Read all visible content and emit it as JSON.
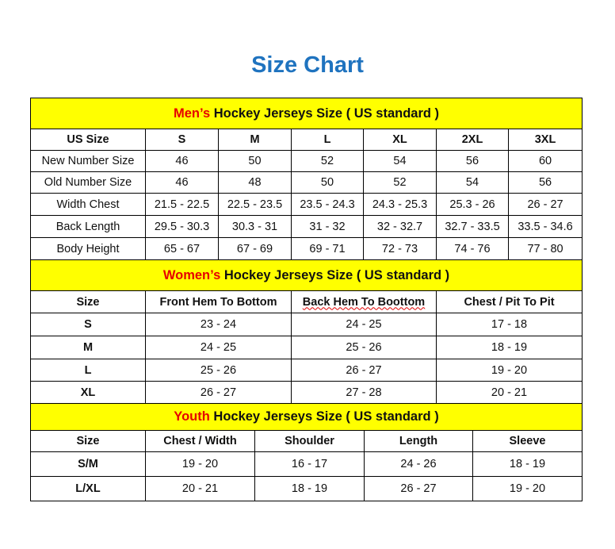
{
  "title": "Size Chart",
  "colors": {
    "title": "#1f73bf",
    "header_bg": "#ffff00",
    "accent_text": "#e60000"
  },
  "men": {
    "accent": "Men’s",
    "heading": " Hockey Jerseys Size ( US standard )",
    "columns": [
      "US Size",
      "S",
      "M",
      "L",
      "XL",
      "2XL",
      "3XL"
    ],
    "rows": [
      [
        "New Number Size",
        "46",
        "50",
        "52",
        "54",
        "56",
        "60"
      ],
      [
        "Old Number Size",
        "46",
        "48",
        "50",
        "52",
        "54",
        "56"
      ],
      [
        "Width Chest",
        "21.5 - 22.5",
        "22.5 - 23.5",
        "23.5 - 24.3",
        "24.3 - 25.3",
        "25.3 - 26",
        "26 - 27"
      ],
      [
        "Back Length",
        "29.5 - 30.3",
        "30.3 - 31",
        "31 - 32",
        "32 - 32.7",
        "32.7 - 33.5",
        "33.5 - 34.6"
      ],
      [
        "Body Height",
        "65 - 67",
        "67 - 69",
        "69 - 71",
        "72 - 73",
        "74 - 76",
        "77 - 80"
      ]
    ]
  },
  "women": {
    "accent": "Women’s",
    "heading": " Hockey Jerseys Size ( US standard )",
    "columns": [
      "Size",
      "Front Hem To Bottom",
      "Back Hem To Boottom",
      "Chest / Pit To Pit"
    ],
    "rows": [
      [
        "S",
        "23 - 24",
        "24 - 25",
        "17 - 18"
      ],
      [
        "M",
        "24 - 25",
        "25 - 26",
        "18 - 19"
      ],
      [
        "L",
        "25 - 26",
        "26 - 27",
        "19 - 20"
      ],
      [
        "XL",
        "26 - 27",
        "27 - 28",
        "20 - 21"
      ]
    ]
  },
  "youth": {
    "accent": "Youth",
    "heading": " Hockey Jerseys Size ( US standard )",
    "columns": [
      "Size",
      "Chest / Width",
      "Shoulder",
      "Length",
      "Sleeve"
    ],
    "rows": [
      [
        "S/M",
        "19 - 20",
        "16 - 17",
        "24 - 26",
        "18 - 19"
      ],
      [
        "L/XL",
        "20 - 21",
        "18 - 19",
        "26 - 27",
        "19 - 20"
      ]
    ]
  }
}
